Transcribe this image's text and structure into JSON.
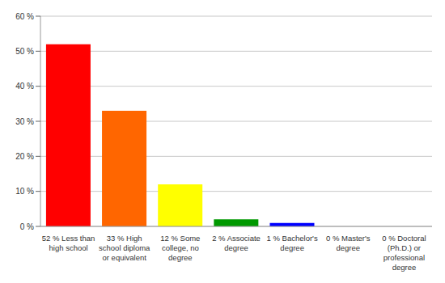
{
  "chart_data": {
    "type": "bar",
    "categories": [
      "52 % Less than high school",
      "33 % High school diploma or equivalent",
      "12 % Some college, no degree",
      "2 % Associate degree",
      "1 % Bachelor's degree",
      "0 % Master's degree",
      "0 % Doctoral (Ph.D.) or professional degree"
    ],
    "values": [
      52,
      33,
      12,
      2,
      1,
      0,
      0
    ],
    "colors": [
      "#ff0000",
      "#ff6600",
      "#ffff00",
      "#009900",
      "#0000ff",
      "#9900ff",
      "#ff00ff"
    ],
    "ylim": [
      0,
      60
    ],
    "yticks": [
      {
        "value": 0,
        "label": "0 %"
      },
      {
        "value": 10,
        "label": "10 %"
      },
      {
        "value": 20,
        "label": "20 %"
      },
      {
        "value": 30,
        "label": "30 %"
      },
      {
        "value": 40,
        "label": "40 %"
      },
      {
        "value": 50,
        "label": "50 %"
      },
      {
        "value": 60,
        "label": "60 %"
      }
    ],
    "grid": true
  }
}
